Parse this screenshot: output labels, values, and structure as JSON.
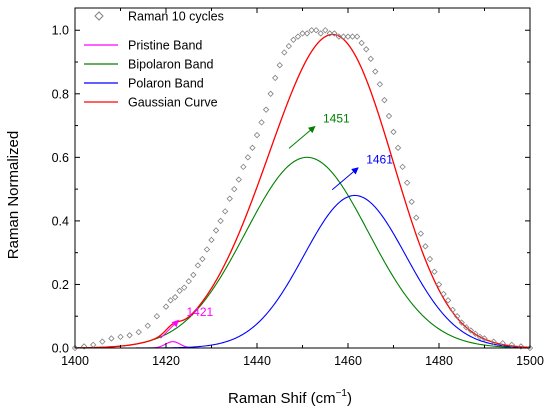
{
  "chart_data": {
    "type": "line",
    "xlabel": "Raman Shif (cm",
    "xlabel_sup": "−1",
    "xlabel_close": ")",
    "ylabel": "Raman Normalized",
    "xlim": [
      1400,
      1500
    ],
    "ylim": [
      0,
      1.07
    ],
    "xticks": [
      1400,
      1420,
      1440,
      1460,
      1480,
      1500
    ],
    "yticks": [
      0.0,
      0.2,
      0.4,
      0.6,
      0.8,
      1.0
    ],
    "xtick_labels": [
      "1400",
      "1420",
      "1440",
      "1460",
      "1480",
      "1500"
    ],
    "ytick_labels": [
      "0.0",
      "0.2",
      "0.4",
      "0.6",
      "0.8",
      "1.0"
    ],
    "grid": false,
    "legend_position": "top-left",
    "series": [
      {
        "name": "Raman 10 cycles",
        "kind": "scatter",
        "marker": "diamond",
        "color": "#808080",
        "x": [
          1400,
          1402,
          1404,
          1406,
          1408,
          1410,
          1412,
          1414,
          1416,
          1418,
          1420,
          1421,
          1422,
          1423,
          1424,
          1425,
          1426,
          1427,
          1428,
          1429,
          1430,
          1431,
          1432,
          1433,
          1434,
          1435,
          1436,
          1437,
          1438,
          1439,
          1440,
          1441,
          1442,
          1443,
          1444,
          1445,
          1446,
          1447,
          1448,
          1449,
          1450,
          1451,
          1452,
          1453,
          1454,
          1455,
          1456,
          1457,
          1458,
          1459,
          1460,
          1461,
          1462,
          1463,
          1464,
          1465,
          1466,
          1467,
          1468,
          1469,
          1470,
          1471,
          1472,
          1473,
          1474,
          1475,
          1476,
          1477,
          1478,
          1479,
          1480,
          1481,
          1482,
          1483,
          1484,
          1485,
          1486,
          1487,
          1488,
          1489,
          1490,
          1492,
          1494,
          1496,
          1498,
          1500
        ],
        "y": [
          0.0,
          0.005,
          0.01,
          0.02,
          0.03,
          0.035,
          0.04,
          0.05,
          0.07,
          0.1,
          0.13,
          0.15,
          0.16,
          0.18,
          0.19,
          0.21,
          0.23,
          0.26,
          0.28,
          0.31,
          0.34,
          0.37,
          0.4,
          0.43,
          0.47,
          0.5,
          0.53,
          0.57,
          0.6,
          0.63,
          0.67,
          0.71,
          0.75,
          0.8,
          0.85,
          0.89,
          0.93,
          0.95,
          0.97,
          0.98,
          0.99,
          0.99,
          1.0,
          1.0,
          0.99,
          1.0,
          0.99,
          0.99,
          0.98,
          0.98,
          0.98,
          0.98,
          0.98,
          0.96,
          0.94,
          0.91,
          0.87,
          0.83,
          0.78,
          0.73,
          0.68,
          0.63,
          0.57,
          0.52,
          0.46,
          0.41,
          0.36,
          0.32,
          0.28,
          0.24,
          0.2,
          0.17,
          0.15,
          0.12,
          0.1,
          0.08,
          0.065,
          0.055,
          0.045,
          0.035,
          0.03,
          0.02,
          0.015,
          0.01,
          0.005,
          0.0
        ]
      },
      {
        "name": "Pristine Band",
        "kind": "line",
        "color": "#ff00ff",
        "curve": {
          "center": 1421.5,
          "amplitude": 0.02,
          "sigma": 1.6
        }
      },
      {
        "name": "Bipolaron Band",
        "kind": "line",
        "color": "#008000",
        "curve": {
          "center": 1451,
          "amplitude": 0.6,
          "sigma": 13.5
        }
      },
      {
        "name": "Polaron Band",
        "kind": "line",
        "color": "#0000ff",
        "curve": {
          "center": 1461.5,
          "amplitude": 0.48,
          "sigma": 11.2
        }
      },
      {
        "name": "Gaussian Curve",
        "kind": "line",
        "color": "#ff0000",
        "composite": true
      }
    ],
    "annotations": [
      {
        "text": "1421",
        "color": "#ff00ff",
        "x": 1424.5,
        "y": 0.1
      },
      {
        "text": "1451",
        "color": "#008000",
        "x": 1454.5,
        "y": 0.71
      },
      {
        "text": "1461",
        "color": "#0000ff",
        "x": 1464,
        "y": 0.58
      }
    ]
  }
}
